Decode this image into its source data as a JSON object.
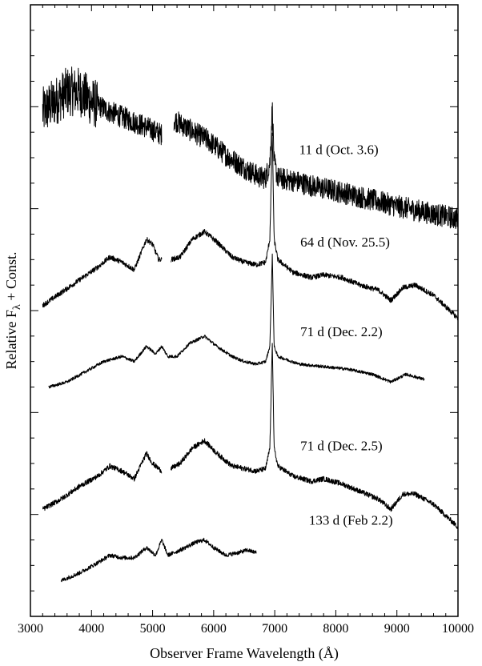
{
  "chart_data": {
    "type": "line",
    "title": "",
    "xlabel": "Observer Frame Wavelength (Å)",
    "ylabel": "Relative F",
    "ylabel_sub": "λ",
    "ylabel_tail": " + Const.",
    "xlim": [
      3000,
      10000
    ],
    "ylim": [
      0,
      12
    ],
    "x_ticks": [
      3000,
      4000,
      5000,
      6000,
      7000,
      8000,
      9000,
      10000
    ],
    "x_tick_labels": [
      "3000",
      "4000",
      "5000",
      "6000",
      "7000",
      "8000",
      "9000",
      "10000"
    ],
    "y_tick_labels_shown": false,
    "grid": false,
    "legend": "none",
    "series": [
      {
        "name": "11 d (Oct. 3.6)",
        "label_x": 7400,
        "noise": 0.22,
        "segments": [
          [
            [
              3200,
              9.9
            ],
            [
              3400,
              10.1
            ],
            [
              3600,
              10.3
            ],
            [
              3800,
              10.3
            ],
            [
              4000,
              10.1
            ],
            [
              4300,
              9.9
            ],
            [
              4600,
              9.75
            ],
            [
              4900,
              9.6
            ],
            [
              5150,
              9.45
            ]
          ],
          [
            [
              5350,
              9.75
            ],
            [
              5600,
              9.55
            ],
            [
              5900,
              9.35
            ],
            [
              6200,
              9.05
            ],
            [
              6500,
              8.8
            ],
            [
              6750,
              8.62
            ],
            [
              6850,
              8.6
            ],
            [
              6920,
              8.9
            ],
            [
              6960,
              10.0
            ],
            [
              6990,
              8.9
            ],
            [
              7050,
              8.6
            ],
            [
              7300,
              8.55
            ],
            [
              7700,
              8.42
            ],
            [
              8000,
              8.35
            ],
            [
              8500,
              8.2
            ],
            [
              9000,
              8.05
            ],
            [
              9500,
              7.92
            ],
            [
              10000,
              7.8
            ]
          ]
        ]
      },
      {
        "name": "64 d (Nov. 25.5)",
        "label_x": 7420,
        "noise": 0.05,
        "segments": [
          [
            [
              3200,
              6.1
            ],
            [
              3500,
              6.35
            ],
            [
              3800,
              6.6
            ],
            [
              4100,
              6.85
            ],
            [
              4300,
              7.05
            ],
            [
              4500,
              6.95
            ],
            [
              4700,
              6.8
            ],
            [
              4900,
              7.4
            ],
            [
              5000,
              7.3
            ],
            [
              5100,
              7.0
            ],
            [
              5150,
              7.0
            ]
          ],
          [
            [
              5300,
              7.0
            ],
            [
              5450,
              7.05
            ],
            [
              5650,
              7.4
            ],
            [
              5850,
              7.55
            ],
            [
              6050,
              7.35
            ],
            [
              6300,
              7.05
            ],
            [
              6500,
              6.95
            ],
            [
              6700,
              6.9
            ],
            [
              6850,
              6.95
            ],
            [
              6920,
              7.4
            ],
            [
              6960,
              9.5
            ],
            [
              6990,
              7.4
            ],
            [
              7050,
              7.0
            ],
            [
              7300,
              6.75
            ],
            [
              7600,
              6.65
            ],
            [
              7800,
              6.7
            ],
            [
              8100,
              6.65
            ],
            [
              8400,
              6.5
            ],
            [
              8700,
              6.4
            ],
            [
              8900,
              6.2
            ],
            [
              9100,
              6.45
            ],
            [
              9300,
              6.5
            ],
            [
              9600,
              6.3
            ],
            [
              10000,
              5.85
            ]
          ]
        ]
      },
      {
        "name": "71 d (Dec. 2.2)",
        "label_x": 7420,
        "noise": 0.03,
        "segments": [
          [
            [
              3300,
              4.5
            ],
            [
              3600,
              4.6
            ],
            [
              3900,
              4.8
            ],
            [
              4200,
              5.0
            ],
            [
              4500,
              5.1
            ],
            [
              4700,
              5.0
            ],
            [
              4900,
              5.3
            ],
            [
              5050,
              5.15
            ],
            [
              5150,
              5.3
            ],
            [
              5250,
              5.1
            ],
            [
              5400,
              5.1
            ],
            [
              5600,
              5.35
            ],
            [
              5850,
              5.5
            ],
            [
              6050,
              5.3
            ],
            [
              6300,
              5.1
            ],
            [
              6500,
              5.0
            ],
            [
              6700,
              4.95
            ],
            [
              6850,
              5.0
            ],
            [
              6920,
              5.3
            ],
            [
              6960,
              7.1
            ],
            [
              6990,
              5.3
            ],
            [
              7050,
              5.1
            ],
            [
              7400,
              4.95
            ],
            [
              7800,
              4.9
            ],
            [
              8200,
              4.85
            ],
            [
              8600,
              4.75
            ],
            [
              8900,
              4.6
            ],
            [
              9150,
              4.75
            ],
            [
              9450,
              4.65
            ]
          ]
        ]
      },
      {
        "name": "71 d (Dec. 2.5)",
        "label_x": 7420,
        "noise": 0.05,
        "segments": [
          [
            [
              3200,
              2.1
            ],
            [
              3500,
              2.3
            ],
            [
              3800,
              2.55
            ],
            [
              4100,
              2.75
            ],
            [
              4300,
              2.95
            ],
            [
              4500,
              2.85
            ],
            [
              4700,
              2.7
            ],
            [
              4900,
              3.2
            ],
            [
              5000,
              3.0
            ],
            [
              5150,
              2.85
            ]
          ],
          [
            [
              5300,
              2.9
            ],
            [
              5450,
              3.0
            ],
            [
              5650,
              3.3
            ],
            [
              5850,
              3.45
            ],
            [
              6050,
              3.2
            ],
            [
              6300,
              2.95
            ],
            [
              6500,
              2.9
            ],
            [
              6700,
              2.85
            ],
            [
              6850,
              2.9
            ],
            [
              6920,
              3.3
            ],
            [
              6960,
              5.4
            ],
            [
              6990,
              3.3
            ],
            [
              7050,
              2.95
            ],
            [
              7300,
              2.75
            ],
            [
              7600,
              2.65
            ],
            [
              7800,
              2.7
            ],
            [
              8100,
              2.6
            ],
            [
              8400,
              2.45
            ],
            [
              8700,
              2.3
            ],
            [
              8900,
              2.1
            ],
            [
              9100,
              2.4
            ],
            [
              9300,
              2.4
            ],
            [
              9600,
              2.2
            ],
            [
              10000,
              1.75
            ]
          ]
        ]
      },
      {
        "name": "133 d (Feb 2.2)",
        "label_x": 7560,
        "noise": 0.04,
        "segments": [
          [
            [
              3500,
              0.7
            ],
            [
              3800,
              0.85
            ],
            [
              4100,
              1.05
            ],
            [
              4300,
              1.2
            ],
            [
              4500,
              1.15
            ],
            [
              4700,
              1.15
            ],
            [
              4900,
              1.35
            ],
            [
              5050,
              1.2
            ],
            [
              5150,
              1.5
            ],
            [
              5250,
              1.2
            ],
            [
              5450,
              1.3
            ],
            [
              5700,
              1.45
            ],
            [
              5850,
              1.5
            ],
            [
              6000,
              1.35
            ],
            [
              6200,
              1.2
            ],
            [
              6400,
              1.25
            ],
            [
              6550,
              1.3
            ],
            [
              6700,
              1.25
            ]
          ]
        ]
      }
    ]
  }
}
